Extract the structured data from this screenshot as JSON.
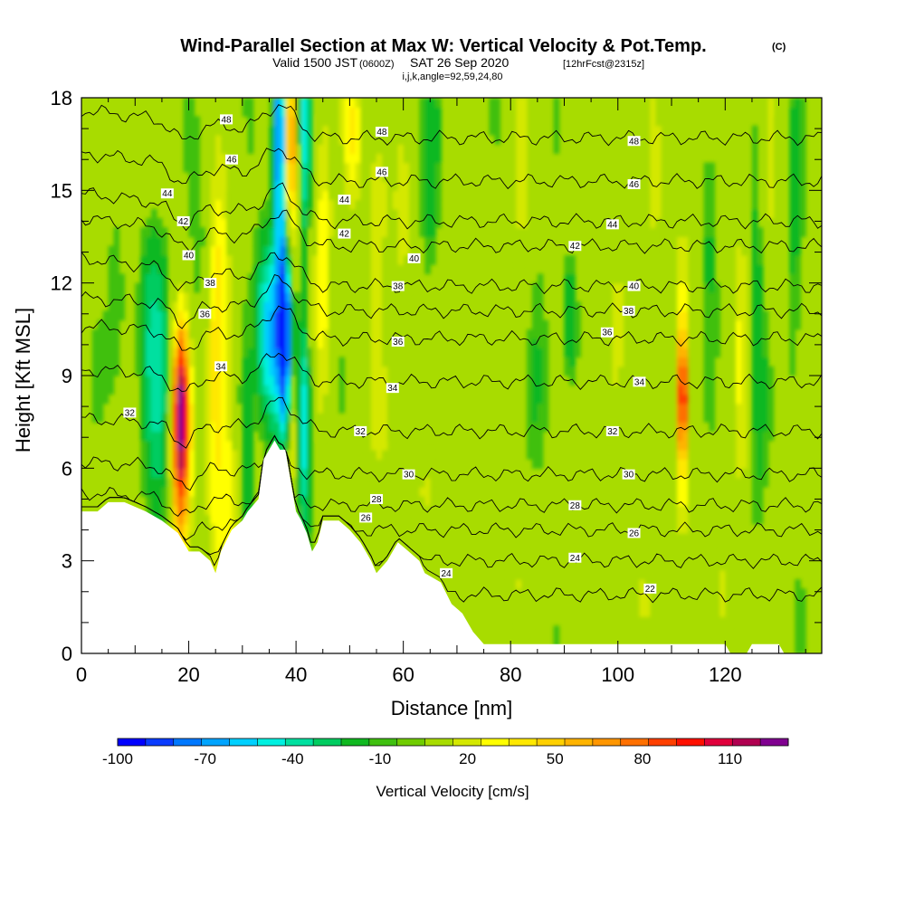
{
  "title": {
    "main": "Wind-Parallel Section at Max W: Vertical Velocity & Pot.Temp.",
    "copyright": "(C)",
    "valid_prefix": "Valid 1500 JST",
    "valid_z": "(0600Z)",
    "valid_date": "SAT 26 Sep 2020",
    "forecast": "[12hrFcst@2315z]",
    "indices": "i,j,k,angle=92,59,24,80"
  },
  "chart_data": {
    "type": "heatmap",
    "xlabel": "Distance [nm]",
    "ylabel": "Height [Kft MSL]",
    "xlim": [
      0,
      138
    ],
    "ylim": [
      0,
      18
    ],
    "x_ticks": [
      0,
      20,
      40,
      60,
      80,
      100,
      120
    ],
    "y_ticks": [
      0,
      3,
      6,
      9,
      12,
      15,
      18
    ],
    "colorbar": {
      "title": "Vertical Velocity [cm/s]",
      "min": -100,
      "max": 130,
      "step": 10,
      "tick_labels": [
        "-100",
        "-70",
        "-40",
        "-10",
        "20",
        "50",
        "80",
        "110"
      ],
      "tick_values": [
        -100,
        -70,
        -40,
        -10,
        20,
        50,
        80,
        110
      ],
      "colors": [
        "#0000ff",
        "#0a3cff",
        "#0078ff",
        "#00a4ff",
        "#00d0ff",
        "#00f0e0",
        "#00e0a0",
        "#00cc60",
        "#10b820",
        "#40c010",
        "#70cc00",
        "#a8dc00",
        "#d4e800",
        "#ffff00",
        "#ffe800",
        "#ffd000",
        "#ffb400",
        "#ff9600",
        "#ff7000",
        "#ff4000",
        "#ff1000",
        "#e0003c",
        "#b00050",
        "#800090"
      ]
    },
    "contour_field": "Potential temperature",
    "contour_labels": [
      {
        "value": "48",
        "x": 27,
        "y": 17.3
      },
      {
        "value": "48",
        "x": 56,
        "y": 16.9
      },
      {
        "value": "48",
        "x": 103,
        "y": 16.6
      },
      {
        "value": "46",
        "x": 28,
        "y": 16.0
      },
      {
        "value": "46",
        "x": 56,
        "y": 15.6
      },
      {
        "value": "46",
        "x": 103,
        "y": 15.2
      },
      {
        "value": "44",
        "x": 16,
        "y": 14.9
      },
      {
        "value": "44",
        "x": 49,
        "y": 14.7
      },
      {
        "value": "44",
        "x": 99,
        "y": 13.9
      },
      {
        "value": "42",
        "x": 19,
        "y": 14.0
      },
      {
        "value": "42",
        "x": 49,
        "y": 13.6
      },
      {
        "value": "42",
        "x": 92,
        "y": 13.2
      },
      {
        "value": "40",
        "x": 20,
        "y": 12.9
      },
      {
        "value": "40",
        "x": 62,
        "y": 12.8
      },
      {
        "value": "40",
        "x": 103,
        "y": 11.9
      },
      {
        "value": "38",
        "x": 24,
        "y": 12.0
      },
      {
        "value": "38",
        "x": 59,
        "y": 11.9
      },
      {
        "value": "38",
        "x": 102,
        "y": 11.1
      },
      {
        "value": "36",
        "x": 23,
        "y": 11.0
      },
      {
        "value": "36",
        "x": 59,
        "y": 10.1
      },
      {
        "value": "36",
        "x": 98,
        "y": 10.4
      },
      {
        "value": "34",
        "x": 26,
        "y": 9.3
      },
      {
        "value": "34",
        "x": 58,
        "y": 8.6
      },
      {
        "value": "34",
        "x": 104,
        "y": 8.8
      },
      {
        "value": "32",
        "x": 9,
        "y": 7.8
      },
      {
        "value": "32",
        "x": 52,
        "y": 7.2
      },
      {
        "value": "32",
        "x": 99,
        "y": 7.2
      },
      {
        "value": "30",
        "x": 61,
        "y": 5.8
      },
      {
        "value": "30",
        "x": 102,
        "y": 5.8
      },
      {
        "value": "28",
        "x": 55,
        "y": 5.0
      },
      {
        "value": "28",
        "x": 92,
        "y": 4.8
      },
      {
        "value": "26",
        "x": 53,
        "y": 4.4
      },
      {
        "value": "26",
        "x": 103,
        "y": 3.9
      },
      {
        "value": "24",
        "x": 68,
        "y": 2.6
      },
      {
        "value": "24",
        "x": 92,
        "y": 3.1
      },
      {
        "value": "22",
        "x": 106,
        "y": 2.1
      }
    ],
    "contour_levels": [
      22,
      24,
      26,
      28,
      30,
      32,
      34,
      36,
      38,
      40,
      42,
      44,
      46,
      48
    ],
    "terrain_profile": [
      [
        0,
        4.6
      ],
      [
        3,
        4.6
      ],
      [
        5,
        4.9
      ],
      [
        8,
        4.9
      ],
      [
        12,
        4.6
      ],
      [
        15,
        4.3
      ],
      [
        18,
        3.9
      ],
      [
        20,
        3.3
      ],
      [
        22,
        3.3
      ],
      [
        24,
        3.0
      ],
      [
        25,
        2.6
      ],
      [
        26,
        3.3
      ],
      [
        28,
        4.0
      ],
      [
        30,
        4.3
      ],
      [
        31,
        4.6
      ],
      [
        33,
        5.0
      ],
      [
        34,
        6.3
      ],
      [
        36,
        6.9
      ],
      [
        37,
        6.6
      ],
      [
        38,
        6.6
      ],
      [
        40,
        4.6
      ],
      [
        41,
        4.3
      ],
      [
        42,
        3.9
      ],
      [
        43,
        3.3
      ],
      [
        44,
        3.6
      ],
      [
        45,
        4.3
      ],
      [
        48,
        4.3
      ],
      [
        50,
        4.0
      ],
      [
        52,
        3.6
      ],
      [
        53,
        3.3
      ],
      [
        54,
        3.0
      ],
      [
        55,
        2.6
      ],
      [
        57,
        3.0
      ],
      [
        59,
        3.6
      ],
      [
        61,
        3.3
      ],
      [
        63,
        3.0
      ],
      [
        64,
        2.6
      ],
      [
        67,
        2.3
      ],
      [
        69,
        1.6
      ],
      [
        71,
        1.3
      ],
      [
        73,
        0.7
      ],
      [
        75,
        0.3
      ],
      [
        120,
        0.3
      ],
      [
        121,
        0.0
      ],
      [
        124,
        0.0
      ],
      [
        125,
        0.3
      ],
      [
        130,
        0.3
      ],
      [
        131,
        0.0
      ],
      [
        138,
        0.0
      ]
    ]
  }
}
